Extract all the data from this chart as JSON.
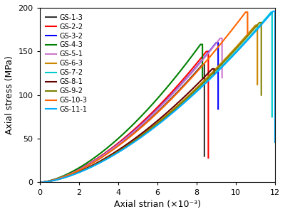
{
  "title": "",
  "xlabel": "Axial strian (×10⁻³)",
  "ylabel": "Axial stress (MPa)",
  "xlim": [
    0,
    12
  ],
  "ylim": [
    0,
    200
  ],
  "xticks": [
    0,
    2,
    4,
    6,
    8,
    10,
    12
  ],
  "yticks": [
    0,
    50,
    100,
    150,
    200
  ],
  "series": [
    {
      "label": "GS-1-3",
      "color": "#333333",
      "peak_x": 8.3,
      "peak_y": 135,
      "drop_x": 8.4,
      "drop_y": 30,
      "end_x": null,
      "end_y": null,
      "max_x": 8.45
    },
    {
      "label": "GS-2-2",
      "color": "#ff0000",
      "peak_x": 8.5,
      "peak_y": 150,
      "drop_x": 8.6,
      "drop_y": 28,
      "end_x": null,
      "end_y": null,
      "max_x": 8.65
    },
    {
      "label": "GS-3-2",
      "color": "#0000ff",
      "peak_x": 9.0,
      "peak_y": 160,
      "drop_x": 9.1,
      "drop_y": 84,
      "end_x": null,
      "end_y": null,
      "max_x": 9.15
    },
    {
      "label": "GS-4-3",
      "color": "#008000",
      "peak_x": 8.2,
      "peak_y": 158,
      "drop_x": 8.3,
      "drop_y": 120,
      "end_x": null,
      "end_y": null,
      "max_x": 8.35
    },
    {
      "label": "GS-5-1",
      "color": "#cc77cc",
      "peak_x": 9.2,
      "peak_y": 165,
      "drop_x": 9.3,
      "drop_y": 120,
      "end_x": null,
      "end_y": null,
      "max_x": 9.35
    },
    {
      "label": "GS-6-3",
      "color": "#cc8800",
      "peak_x": 11.0,
      "peak_y": 180,
      "drop_x": 11.1,
      "drop_y": 112,
      "end_x": null,
      "end_y": null,
      "max_x": 11.15
    },
    {
      "label": "GS-7-2",
      "color": "#00cccc",
      "peak_x": 11.8,
      "peak_y": 195,
      "drop_x": 11.85,
      "drop_y": 75,
      "end_x": null,
      "end_y": null,
      "max_x": 11.9
    },
    {
      "label": "GS-8-1",
      "color": "#660000",
      "peak_x": 8.8,
      "peak_y": 130,
      "drop_x": 8.9,
      "drop_y": 124,
      "end_x": null,
      "end_y": null,
      "max_x": 8.95
    },
    {
      "label": "GS-9-2",
      "color": "#808000",
      "peak_x": 11.2,
      "peak_y": 183,
      "drop_x": 11.3,
      "drop_y": 100,
      "end_x": null,
      "end_y": null,
      "max_x": 11.35
    },
    {
      "label": "GS-10-3",
      "color": "#ff6600",
      "peak_x": 10.5,
      "peak_y": 195,
      "drop_x": 10.6,
      "drop_y": 170,
      "end_x": null,
      "end_y": null,
      "max_x": 10.65
    },
    {
      "label": "GS-11-1",
      "color": "#00aaff",
      "peak_x": 11.9,
      "peak_y": 196,
      "drop_x": 12.0,
      "drop_y": 46,
      "end_x": null,
      "end_y": null,
      "max_x": 12.0
    }
  ],
  "background_color": "#ffffff",
  "legend_fontsize": 7,
  "axis_fontsize": 9,
  "tick_fontsize": 8,
  "linewidth": 1.5
}
